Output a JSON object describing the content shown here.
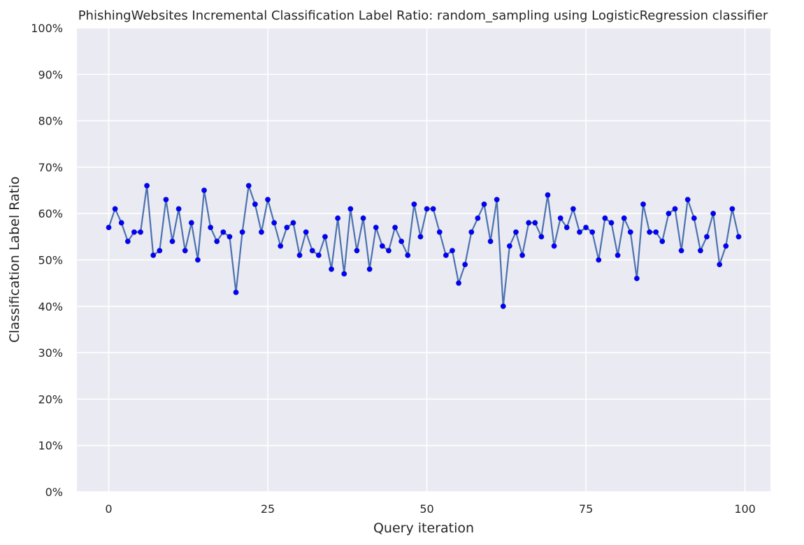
{
  "chart_data": {
    "type": "line",
    "title": "PhishingWebsites Incremental Classification Label Ratio: random_sampling using LogisticRegression classifier",
    "xlabel": "Query iteration",
    "ylabel": "Classification Label Ratio",
    "xlim": [
      -5,
      104
    ],
    "ylim": [
      0,
      1
    ],
    "x_ticks": [
      0,
      25,
      50,
      75,
      100
    ],
    "y_ticks": [
      0,
      0.1,
      0.2,
      0.3,
      0.4,
      0.5,
      0.6,
      0.7,
      0.8,
      0.9,
      1.0
    ],
    "y_tick_labels": [
      "0%",
      "10%",
      "20%",
      "30%",
      "40%",
      "50%",
      "60%",
      "70%",
      "80%",
      "90%",
      "100%"
    ],
    "grid": true,
    "background_color": "#eaeaf2",
    "grid_color": "#ffffff",
    "line_color": "#4c72b0",
    "marker_color": "#0000ff",
    "series": [
      {
        "x": [
          0,
          1,
          2,
          3,
          4,
          5,
          6,
          7,
          8,
          9,
          10,
          11,
          12,
          13,
          14,
          15,
          16,
          17,
          18,
          19,
          20,
          21,
          22,
          23,
          24,
          25,
          26,
          27,
          28,
          29,
          30,
          31,
          32,
          33,
          34,
          35,
          36,
          37,
          38,
          39,
          40,
          41,
          42,
          43,
          44,
          45,
          46,
          47,
          48,
          49,
          50,
          51,
          52,
          53,
          54,
          55,
          56,
          57,
          58,
          59,
          60,
          61,
          62,
          63,
          64,
          65,
          66,
          67,
          68,
          69,
          70,
          71,
          72,
          73,
          74,
          75,
          76,
          77,
          78,
          79,
          80,
          81,
          82,
          83,
          84,
          85,
          86,
          87,
          88,
          89,
          90,
          91,
          92,
          93,
          94,
          95,
          96,
          97,
          98,
          99
        ],
        "values": [
          0.57,
          0.61,
          0.58,
          0.54,
          0.56,
          0.56,
          0.66,
          0.51,
          0.52,
          0.63,
          0.54,
          0.61,
          0.52,
          0.58,
          0.5,
          0.65,
          0.57,
          0.54,
          0.56,
          0.55,
          0.43,
          0.56,
          0.66,
          0.62,
          0.56,
          0.63,
          0.58,
          0.53,
          0.57,
          0.58,
          0.51,
          0.56,
          0.52,
          0.51,
          0.55,
          0.48,
          0.59,
          0.47,
          0.61,
          0.52,
          0.59,
          0.48,
          0.57,
          0.53,
          0.52,
          0.57,
          0.54,
          0.51,
          0.62,
          0.55,
          0.61,
          0.61,
          0.56,
          0.51,
          0.52,
          0.45,
          0.49,
          0.56,
          0.59,
          0.62,
          0.54,
          0.63,
          0.4,
          0.53,
          0.56,
          0.51,
          0.58,
          0.58,
          0.55,
          0.64,
          0.53,
          0.59,
          0.57,
          0.61,
          0.56,
          0.57,
          0.56,
          0.5,
          0.59,
          0.58,
          0.51,
          0.59,
          0.56,
          0.46,
          0.62,
          0.56,
          0.56,
          0.54,
          0.6,
          0.61,
          0.52,
          0.63,
          0.59,
          0.52,
          0.55,
          0.6,
          0.49,
          0.53,
          0.61,
          0.55
        ]
      }
    ]
  }
}
